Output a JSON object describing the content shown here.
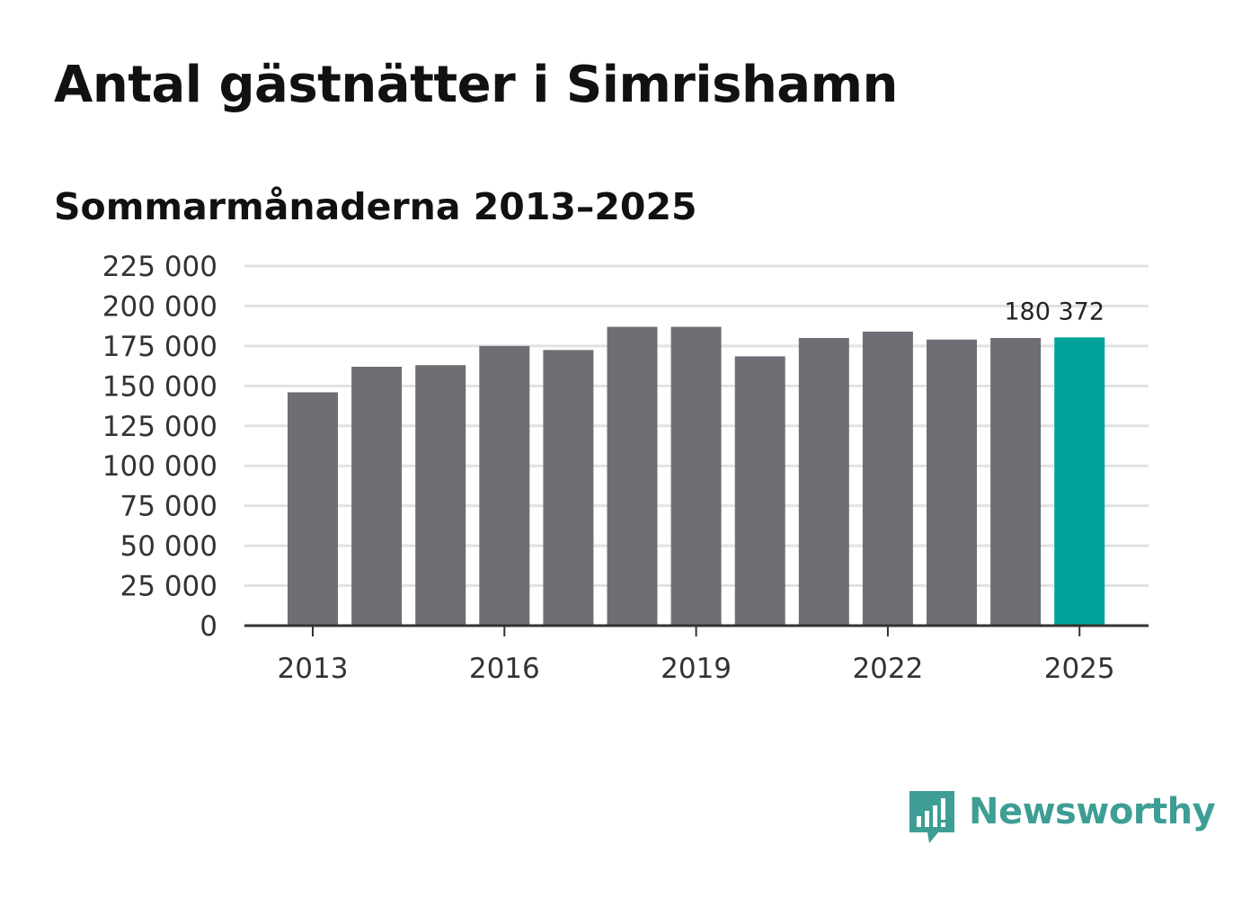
{
  "chart_data": {
    "type": "bar",
    "title": "Antal gästnätter i Simrishamn",
    "subtitle": "Sommarmånaderna 2013–2025",
    "categories": [
      "2013",
      "2014",
      "2015",
      "2016",
      "2017",
      "2018",
      "2019",
      "2020",
      "2021",
      "2022",
      "2023",
      "2024",
      "2025"
    ],
    "values": [
      146000,
      162000,
      163000,
      175000,
      172500,
      187000,
      187000,
      168500,
      180000,
      184000,
      179000,
      180000,
      180372
    ],
    "ylim": [
      0,
      225000
    ],
    "yticks": [
      0,
      25000,
      50000,
      75000,
      100000,
      125000,
      150000,
      175000,
      200000,
      225000
    ],
    "ytick_labels": [
      "0",
      "25 000",
      "50 000",
      "75 000",
      "100 000",
      "125 000",
      "150 000",
      "175 000",
      "200 000",
      "225 000"
    ],
    "xtick_labels": [
      "2013",
      "2016",
      "2019",
      "2022",
      "2025"
    ],
    "highlight": {
      "category": "2025",
      "label": "180 372"
    },
    "grid": true,
    "colors": {
      "bar": "#6f6e74",
      "highlight": "#00a39a",
      "grid": "#e2e2e2",
      "axis": "#333333"
    }
  },
  "branding": {
    "name": "Newsworthy",
    "icon": "bar-chart-speech-bubble-icon",
    "color": "#3e9e95"
  }
}
